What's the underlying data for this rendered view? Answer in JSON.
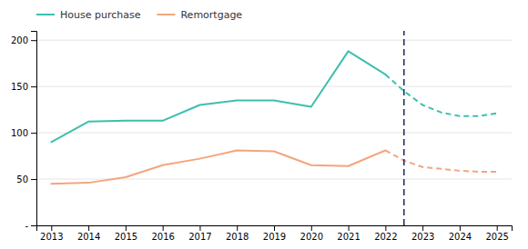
{
  "chart_data": {
    "type": "line",
    "series": [
      {
        "name": "House purchase",
        "color": "#3dbfad",
        "line_style": "solid",
        "x": [
          2013,
          2014,
          2015,
          2016,
          2017,
          2018,
          2019,
          2020,
          2021,
          2022
        ],
        "values": [
          90,
          112,
          113,
          113,
          130,
          135,
          135,
          128,
          188,
          163
        ]
      },
      {
        "color": "#3dbfad",
        "line_style": "dashed",
        "x": [
          2022,
          2022.5,
          2023,
          2023.5,
          2024,
          2024.5,
          2025
        ],
        "values": [
          163,
          145,
          130,
          122,
          118,
          118,
          121
        ]
      },
      {
        "name": "Remortgage",
        "color": "#f4a57c",
        "line_style": "solid",
        "x": [
          2013,
          2014,
          2015,
          2016,
          2017,
          2018,
          2019,
          2020,
          2021,
          2022
        ],
        "values": [
          45,
          46,
          52,
          65,
          72,
          81,
          80,
          65,
          64,
          81
        ]
      },
      {
        "color": "#f4a57c",
        "line_style": "dashed",
        "x": [
          2022,
          2022.5,
          2023,
          2023.5,
          2024,
          2024.5,
          2025
        ],
        "values": [
          81,
          70,
          63,
          61,
          59,
          58,
          58
        ]
      }
    ],
    "vlines": [
      {
        "x": 2022.5,
        "color": "#1f3160",
        "line_style": "dashed"
      }
    ],
    "xlim": [
      2012.6,
      2025.4
    ],
    "xticks": [
      2013,
      2014,
      2015,
      2016,
      2017,
      2018,
      2019,
      2020,
      2021,
      2022,
      2023,
      2024,
      2025
    ],
    "ylim": [
      0,
      210
    ],
    "yticks": [
      {
        "value": 0,
        "label": "-"
      },
      50,
      100,
      150,
      200
    ],
    "grid": true,
    "legend": "top-left"
  }
}
